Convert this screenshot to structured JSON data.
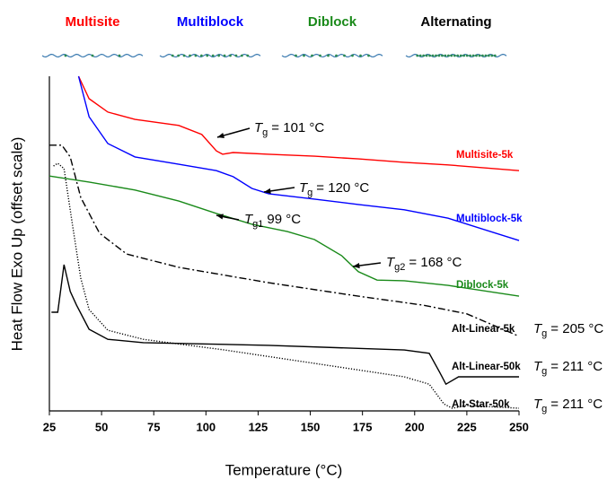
{
  "chart_data": {
    "type": "line",
    "xlabel": "Temperature (°C)",
    "ylabel": "Heat Flow Exo Up (offset scale)",
    "xlim": [
      25,
      250
    ],
    "xticks": [
      25,
      50,
      75,
      100,
      125,
      150,
      175,
      200,
      225,
      250
    ],
    "ylim": [
      0,
      100
    ],
    "legend_titles": [
      {
        "text": "Multisite",
        "color": "#ff0000"
      },
      {
        "text": "Multiblock",
        "color": "#0000ff"
      },
      {
        "text": "Diblock",
        "color": "#1a8a1a"
      },
      {
        "text": "Alternating",
        "color": "#000000"
      }
    ],
    "series": [
      {
        "name": "Multisite-5k",
        "color": "#ff0000",
        "linestyle": "solid",
        "x": [
          39,
          44,
          53,
          66,
          87,
          98,
          105,
          108,
          113,
          130,
          152,
          173,
          195,
          216,
          250
        ],
        "values": [
          100,
          93.3,
          89.3,
          87.1,
          85.3,
          82.6,
          77.7,
          76.7,
          77.2,
          76.7,
          76.1,
          75.3,
          74.3,
          73.5,
          71.8
        ]
      },
      {
        "name": "Multiblock-5k",
        "color": "#0000ff",
        "linestyle": "solid",
        "x": [
          39,
          44,
          53,
          66,
          87,
          105,
          113,
          122,
          130,
          152,
          173,
          195,
          216,
          250
        ],
        "values": [
          100,
          87.9,
          79.9,
          75.9,
          73.7,
          71.8,
          70.0,
          66.5,
          64.9,
          63.3,
          61.7,
          60.1,
          57.6,
          50.9
        ]
      },
      {
        "name": "Diblock-5k",
        "color": "#1a8a1a",
        "linestyle": "solid",
        "x": [
          25,
          44,
          66,
          87,
          105,
          122,
          139,
          152,
          165,
          173,
          182,
          195,
          216,
          250
        ],
        "values": [
          70.2,
          68.4,
          66.0,
          62.7,
          59.0,
          55.8,
          53.6,
          51.2,
          46.4,
          41.6,
          39.1,
          38.9,
          37.5,
          34.3
        ]
      },
      {
        "name": "Alt-Linear-5k",
        "color": "#000000",
        "linestyle": "dashdot",
        "x": [
          25,
          31,
          35,
          40,
          49,
          62,
          87,
          130,
          173,
          204,
          225,
          250
        ],
        "values": [
          79.4,
          79.4,
          75.9,
          63.8,
          53.1,
          46.9,
          42.9,
          38.3,
          34.3,
          31.6,
          29.0,
          22.3
        ]
      },
      {
        "name": "Alt-Linear-50k",
        "color": "#000000",
        "linestyle": "solid",
        "x": [
          26,
          29,
          32,
          35,
          38,
          44,
          53,
          70,
          130,
          195,
          207,
          212,
          215,
          221,
          250
        ],
        "values": [
          29.5,
          29.5,
          43.7,
          35.7,
          31.6,
          24.4,
          21.4,
          20.4,
          19.6,
          18.2,
          17.2,
          11.5,
          8.0,
          10.2,
          10.2
        ]
      },
      {
        "name": "Alt-Star-50k",
        "color": "#000000",
        "linestyle": "dotted",
        "x": [
          27,
          29,
          32,
          36,
          40,
          44,
          53,
          70,
          109,
          152,
          195,
          207,
          214,
          218,
          225,
          250
        ],
        "values": [
          73.2,
          74.0,
          72.4,
          55.8,
          39.7,
          30.3,
          24.1,
          21.4,
          18.2,
          14.2,
          10.2,
          8.0,
          2.1,
          0.8,
          1.6,
          0.8
        ]
      }
    ],
    "annotations": [
      {
        "symbol": "T",
        "subscript": "g",
        "text": "= 101 °C"
      },
      {
        "symbol": "T",
        "subscript": "g",
        "text": "= 120 °C"
      },
      {
        "symbol": "T",
        "subscript": "g1",
        "text": "99 °C"
      },
      {
        "symbol": "T",
        "subscript": "g2",
        "text": "= 168 °C"
      },
      {
        "symbol": "T",
        "subscript": "g",
        "text": "= 205 °C"
      },
      {
        "symbol": "T",
        "subscript": "g",
        "text": "= 211 °C"
      },
      {
        "symbol": "T",
        "subscript": "g",
        "text": "= 211 °C"
      }
    ]
  }
}
